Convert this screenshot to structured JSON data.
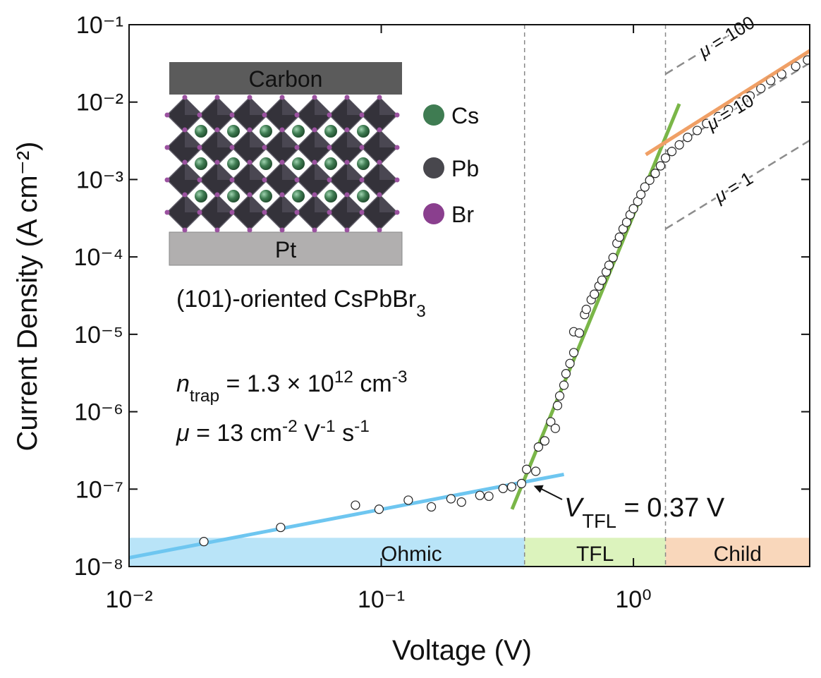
{
  "chart_data": {
    "type": "scatter",
    "xlabel": "Voltage (V)",
    "ylabel": "Current Density (A cm⁻²)",
    "xscale": "log",
    "yscale": "log",
    "xlim": [
      0.01,
      5
    ],
    "ylim": [
      1e-08,
      0.1
    ],
    "xticks": [
      {
        "value": 0.01,
        "label": "10⁻²"
      },
      {
        "value": 0.1,
        "label": "10⁻¹"
      },
      {
        "value": 1,
        "label": "10⁰"
      }
    ],
    "yticks": [
      {
        "value": 1e-08,
        "label": "10⁻⁸"
      },
      {
        "value": 1e-07,
        "label": "10⁻⁷"
      },
      {
        "value": 1e-06,
        "label": "10⁻⁶"
      },
      {
        "value": 1e-05,
        "label": "10⁻⁵"
      },
      {
        "value": 0.0001,
        "label": "10⁻⁴"
      },
      {
        "value": 0.001,
        "label": "10⁻³"
      },
      {
        "value": 0.01,
        "label": "10⁻²"
      },
      {
        "value": 0.1,
        "label": "10⁻¹"
      }
    ],
    "series": [
      {
        "color": "#ffffff",
        "edgecolor": "#222222",
        "x": [
          0.0198,
          0.0399,
          0.079,
          0.098,
          0.128,
          0.158,
          0.189,
          0.208,
          0.246,
          0.267,
          0.304,
          0.329,
          0.36,
          0.377,
          0.41,
          0.42,
          0.445,
          0.47,
          0.49,
          0.5,
          0.51,
          0.53,
          0.54,
          0.56,
          0.58,
          0.58,
          0.61,
          0.64,
          0.65,
          0.68,
          0.7,
          0.73,
          0.75,
          0.78,
          0.8,
          0.83,
          0.86,
          0.88,
          0.91,
          0.94,
          0.97,
          1.0,
          1.04,
          1.07,
          1.11,
          1.16,
          1.22,
          1.28,
          1.34,
          1.42,
          1.52,
          1.64,
          1.79,
          1.95,
          2.17,
          2.38,
          2.63,
          2.9,
          3.2,
          3.5,
          3.87,
          4.4,
          4.9
        ],
        "values": [
          2.1e-08,
          3.2e-08,
          6.2e-08,
          5.5e-08,
          7.2e-08,
          5.9e-08,
          7.5e-08,
          6.8e-08,
          8.3e-08,
          8.1e-08,
          1.02e-07,
          1.07e-07,
          1.18e-07,
          1.8e-07,
          1.7e-07,
          3.5e-07,
          4.2e-07,
          7.4e-07,
          6.1e-07,
          1.2e-06,
          1.6e-06,
          2.2e-06,
          3.1e-06,
          4.2e-06,
          5.8e-06,
          1.08e-05,
          1.04e-05,
          1.8e-05,
          2.1e-05,
          2.8e-05,
          3.3e-05,
          4.2e-05,
          5e-05,
          6.4e-05,
          7.8e-05,
          9.8e-05,
          0.00015,
          0.00018,
          0.00023,
          0.00028,
          0.00035,
          0.00042,
          0.00052,
          0.00064,
          0.0008,
          0.00098,
          0.0012,
          0.0015,
          0.0019,
          0.0023,
          0.0028,
          0.0035,
          0.0043,
          0.0053,
          0.0065,
          0.008,
          0.01,
          0.012,
          0.015,
          0.019,
          0.023,
          0.029,
          0.035
        ]
      }
    ],
    "fits": [
      {
        "color": "#6ec6f0",
        "x": [
          0.01,
          0.53
        ],
        "values": [
          1.3e-08,
          1.55e-07
        ]
      },
      {
        "color": "#7ab648",
        "x": [
          0.33,
          1.52
        ],
        "values": [
          5.5e-08,
          0.0095
        ]
      },
      {
        "color": "#f0a066",
        "x": [
          1.12,
          5
        ],
        "values": [
          0.0021,
          0.046
        ]
      }
    ],
    "reference_lines": [
      {
        "color": "#8c8c8c",
        "x": [
          1.34,
          5
        ],
        "values": [
          0.023,
          0.32
        ],
        "label": [
          {
            "text": "μ",
            "style": "italic"
          },
          {
            "text": " = 100"
          }
        ]
      },
      {
        "color": "#8c8c8c",
        "x": [
          1.34,
          5
        ],
        "values": [
          0.0023,
          0.032
        ],
        "label": [
          {
            "text": "μ",
            "style": "italic"
          },
          {
            "text": " = 10"
          }
        ]
      },
      {
        "color": "#8c8c8c",
        "x": [
          1.34,
          5
        ],
        "values": [
          0.00023,
          0.0032
        ],
        "label": [
          {
            "text": "μ",
            "style": "italic"
          },
          {
            "text": " = 1"
          }
        ]
      }
    ],
    "vlines": [
      0.37,
      1.34
    ],
    "region_top": 2.35e-08,
    "regions": [
      {
        "label": "Ohmic",
        "x": [
          0.01,
          0.37
        ],
        "color": "#b9e4f8",
        "text_color": "#2a80c0"
      },
      {
        "label": "TFL",
        "x": [
          0.37,
          1.34
        ],
        "color": "#dcf3bd",
        "text_color": "#4e7a22"
      },
      {
        "label": "Child",
        "x": [
          1.34,
          5
        ],
        "color": "#f9d7bb",
        "text_color": "#ea8236"
      }
    ],
    "annotations": [
      {
        "xy": [
          0.37,
          1.2e-07
        ],
        "text": [
          {
            "text": "V",
            "style": "italic"
          },
          {
            "text": "TFL",
            "style": "sub"
          },
          {
            "text": " = 0.37 V"
          }
        ]
      },
      {
        "text": [
          {
            "text": "n",
            "style": "italic"
          },
          {
            "text": "trap",
            "style": "sub"
          },
          {
            "text": " = 1.3 × 10"
          },
          {
            "text": "12",
            "style": "sup"
          },
          {
            "text": " cm"
          },
          {
            "text": "-3",
            "style": "sup"
          }
        ]
      },
      {
        "text": [
          {
            "text": "μ",
            "style": "italic"
          },
          {
            "text": " = 13 cm"
          },
          {
            "text": "-2",
            "style": "sup"
          },
          {
            "text": " V"
          },
          {
            "text": "-1",
            "style": "sup"
          },
          {
            "text": " s"
          },
          {
            "text": "-1",
            "style": "sup"
          }
        ]
      }
    ]
  },
  "inset": {
    "top_layer": "Carbon",
    "bottom_layer": "Pt",
    "legend": [
      {
        "label": "Cs",
        "color": "#3f7c52"
      },
      {
        "label": "Pb",
        "color": "#48474d"
      },
      {
        "label": "Br",
        "color": "#8a3f8e"
      }
    ],
    "caption": [
      {
        "text": "(101)-oriented CsPbBr"
      },
      {
        "text": "3",
        "style": "sub"
      }
    ]
  }
}
